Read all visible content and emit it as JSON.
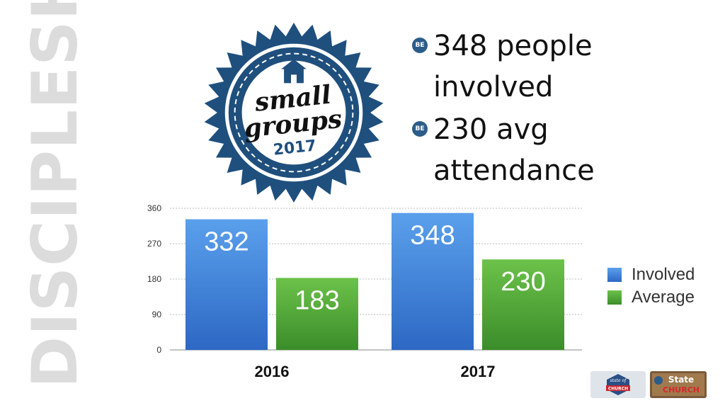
{
  "side_title": "DISCIPLESHIP",
  "badge": {
    "line1": "small",
    "line2": "groups",
    "year": "2017"
  },
  "bullets": [
    {
      "icon": "BE",
      "line1": "348 people",
      "line2": "involved"
    },
    {
      "icon": "BE",
      "line1": "230 avg",
      "line2": "attendance"
    }
  ],
  "chart_data": {
    "type": "bar",
    "categories": [
      "2016",
      "2017"
    ],
    "series": [
      {
        "name": "Involved",
        "values": [
          332,
          348
        ],
        "color": "#3b7fd9"
      },
      {
        "name": "Average",
        "values": [
          183,
          230
        ],
        "color": "#4ea83a"
      }
    ],
    "ylim": [
      0,
      360
    ],
    "yticks": [
      0,
      90,
      180,
      270,
      360
    ],
    "grid": true,
    "legend_position": "right"
  },
  "footer_logos": [
    {
      "line1": "state of",
      "line2": "CHURCH"
    },
    {
      "line1": "State",
      "line2": "CHURCH"
    }
  ]
}
